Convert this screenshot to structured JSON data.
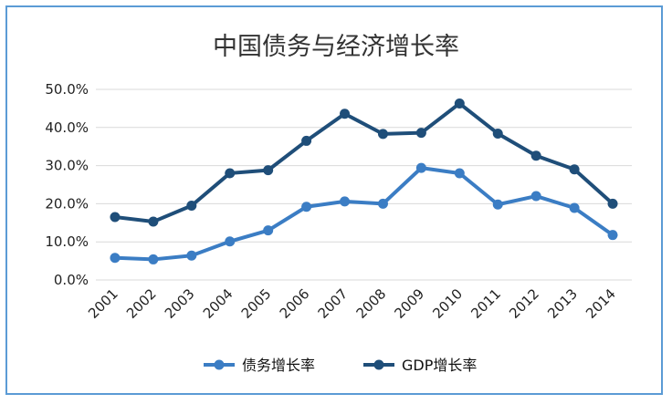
{
  "chart_data": {
    "type": "line",
    "title": "中国债务与经济增长率",
    "categories": [
      "2001",
      "2002",
      "2003",
      "2004",
      "2005",
      "2006",
      "2007",
      "2008",
      "2009",
      "2010",
      "2011",
      "2012",
      "2013",
      "2014"
    ],
    "y_ticks": [
      "50.0%",
      "40.0%",
      "30.0%",
      "20.0%",
      "10.0%",
      "0.0%"
    ],
    "ylim": [
      0,
      50
    ],
    "grid": true,
    "legend_position": "bottom",
    "series": [
      {
        "name": "债务增长率",
        "color": "#3b7dc4",
        "values": [
          5.8,
          5.4,
          6.4,
          10.1,
          13.0,
          19.2,
          20.6,
          20.0,
          29.4,
          28.0,
          19.8,
          22.0,
          18.9,
          11.8
        ]
      },
      {
        "name": "GDP增长率",
        "color": "#1f4e79",
        "values": [
          16.5,
          15.3,
          19.5,
          28.0,
          28.8,
          36.5,
          43.6,
          38.3,
          38.6,
          46.3,
          38.4,
          32.6,
          29.0,
          20.0
        ]
      }
    ]
  }
}
